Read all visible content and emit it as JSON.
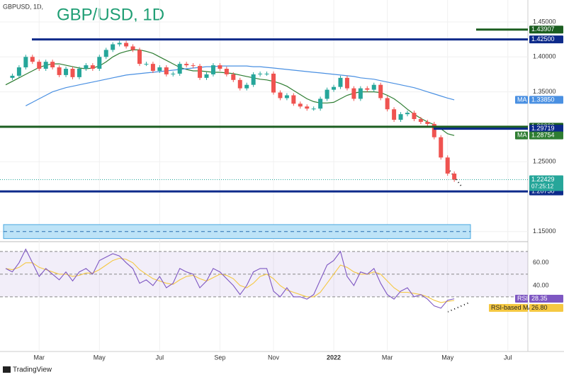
{
  "chart_data": [
    {
      "type": "candle-close",
      "title": "GBP/USD, 1D",
      "subtitle": "GBPUSD, 1D,",
      "footer": "TradingView",
      "countdown": "07:25:12",
      "categories": [
        null,
        null,
        null,
        null,
        null,
        "Mar",
        null,
        null,
        null,
        null,
        null,
        null,
        null,
        null,
        "May",
        null,
        null,
        null,
        null,
        null,
        null,
        null,
        null,
        "Jul",
        null,
        null,
        null,
        null,
        null,
        null,
        null,
        null,
        "Sep",
        null,
        null,
        null,
        null,
        null,
        null,
        null,
        "Nov",
        null,
        null,
        null,
        null,
        null,
        null,
        null,
        null,
        "2022",
        null,
        null,
        null,
        null,
        null,
        null,
        null,
        "Mar",
        null,
        null,
        null,
        null,
        null,
        null,
        null,
        null,
        "May",
        null,
        null,
        null,
        null,
        null,
        null,
        null,
        null,
        "Jul",
        null,
        null
      ],
      "ylim": [
        1.1366,
        1.4814
      ],
      "yticks": [
        {
          "value": 1.45,
          "label": "1.45000"
        },
        {
          "value": 1.4,
          "label": "1.40000"
        },
        {
          "value": 1.35,
          "label": "1.35000"
        },
        {
          "value": 1.3,
          "label": "1.30000"
        },
        {
          "value": 1.25,
          "label": "1.25000"
        },
        {
          "value": 1.15,
          "label": "1.15000"
        }
      ],
      "up_color": "#26a69a",
      "down_color": "#ef5350",
      "series": [
        {
          "color": "#26a69a",
          "values": [
            1.37,
            1.373,
            1.385,
            1.4,
            1.393,
            1.383,
            1.393,
            1.385,
            1.374,
            1.383,
            1.371,
            1.383,
            1.388,
            1.383,
            1.4,
            1.41,
            1.418,
            1.42,
            1.415,
            1.41,
            1.39,
            1.39,
            1.38,
            1.385,
            1.375,
            1.376,
            1.39,
            1.388,
            1.387,
            1.37,
            1.375,
            1.388,
            1.383,
            1.375,
            1.367,
            1.355,
            1.36,
            1.375,
            1.376,
            1.376,
            1.349,
            1.341,
            1.345,
            1.333,
            1.329,
            1.326,
            1.326,
            1.34,
            1.353,
            1.357,
            1.37,
            1.355,
            1.34,
            1.355,
            1.353,
            1.36,
            1.341,
            1.325,
            1.31,
            1.318,
            1.32,
            1.311,
            1.307,
            1.304,
            1.285,
            1.256,
            1.233,
            1.22429,
            null,
            null,
            null,
            null,
            null,
            null,
            null,
            null,
            null,
            null
          ]
        },
        {
          "label": "MA",
          "color": "#2e7d32",
          "values": [
            1.36,
            1.365,
            1.37,
            1.375,
            1.38,
            1.385,
            1.388,
            1.39,
            1.39,
            1.388,
            1.386,
            1.384,
            1.383,
            1.384,
            1.387,
            1.393,
            1.4,
            1.405,
            1.408,
            1.41,
            1.41,
            1.408,
            1.405,
            1.4,
            1.395,
            1.39,
            1.385,
            1.382,
            1.38,
            1.38,
            1.379,
            1.378,
            1.378,
            1.377,
            1.376,
            1.374,
            1.372,
            1.37,
            1.368,
            1.367,
            1.365,
            1.362,
            1.358,
            1.352,
            1.346,
            1.34,
            1.336,
            1.334,
            1.334,
            1.335,
            1.34,
            1.345,
            1.348,
            1.35,
            1.35,
            1.35,
            1.349,
            1.345,
            1.34,
            1.333,
            1.325,
            1.318,
            1.312,
            1.307,
            1.303,
            1.297,
            1.29,
            1.28754,
            null,
            null,
            null,
            null,
            null,
            null,
            null,
            null,
            null,
            null
          ]
        },
        {
          "label": "MA",
          "color": "#4a90e2",
          "last_label": "1.33850",
          "values": [
            null,
            null,
            null,
            1.33,
            1.335,
            1.34,
            1.345,
            1.35,
            1.353,
            1.356,
            1.358,
            1.36,
            1.362,
            1.364,
            1.366,
            1.368,
            1.37,
            1.372,
            1.374,
            1.375,
            1.376,
            1.377,
            1.378,
            1.379,
            1.38,
            1.381,
            1.382,
            1.383,
            1.384,
            1.385,
            1.386,
            1.386,
            1.387,
            1.387,
            1.387,
            1.387,
            1.387,
            1.386,
            1.386,
            1.385,
            1.384,
            1.383,
            1.382,
            1.381,
            1.38,
            1.379,
            1.378,
            1.377,
            1.376,
            1.375,
            1.374,
            1.373,
            1.372,
            1.37,
            1.369,
            1.368,
            1.366,
            1.364,
            1.362,
            1.36,
            1.358,
            1.356,
            1.353,
            1.35,
            1.347,
            1.344,
            1.341,
            1.3385,
            null,
            null,
            null,
            null,
            null,
            null,
            null,
            null,
            null,
            null
          ]
        }
      ],
      "levels": [
        {
          "value": 1.43907,
          "color": "#1b5e20"
        },
        {
          "value": 1.425,
          "label": "1.42500",
          "color": "#0d2a8a"
        },
        {
          "value": 1.3,
          "label": "1.30000",
          "color": "#1b5e20"
        },
        {
          "value": 1.29719,
          "color": "#0d2a8a"
        },
        {
          "value": 1.2075,
          "label": "1.20750",
          "color": "#0d2a8a"
        }
      ],
      "zone": [
        1.14,
        1.16
      ]
    },
    {
      "type": "rsi",
      "ylim": [
        -10,
        78
      ],
      "yticks": [
        {
          "value": 60,
          "label": "60.00"
        },
        {
          "value": 40,
          "label": "40.00"
        }
      ],
      "bands": [
        70,
        50,
        30
      ],
      "series": [
        {
          "label": "RSI",
          "color": "#7e57c2",
          "values": [
            55,
            52,
            60,
            72,
            60,
            48,
            55,
            50,
            45,
            52,
            44,
            52,
            55,
            50,
            62,
            65,
            68,
            66,
            60,
            55,
            42,
            45,
            40,
            48,
            38,
            42,
            55,
            52,
            50,
            38,
            44,
            55,
            52,
            46,
            40,
            32,
            40,
            52,
            55,
            55,
            35,
            30,
            38,
            30,
            30,
            28,
            32,
            45,
            58,
            62,
            70,
            48,
            40,
            52,
            50,
            55,
            42,
            32,
            28,
            35,
            38,
            30,
            32,
            28,
            22,
            20,
            27,
            28.35,
            null,
            null,
            null,
            null,
            null,
            null,
            null,
            null,
            null,
            null
          ]
        },
        {
          "label": "RSI-based MA",
          "color": "#f5c842",
          "last_label": "26.80",
          "values": [
            55,
            54,
            56,
            60,
            60,
            56,
            54,
            52,
            50,
            50,
            48,
            49,
            51,
            51,
            54,
            58,
            62,
            64,
            63,
            60,
            54,
            50,
            46,
            44,
            42,
            41,
            45,
            48,
            49,
            46,
            44,
            47,
            50,
            49,
            46,
            40,
            38,
            42,
            48,
            50,
            46,
            40,
            36,
            34,
            32,
            30,
            30,
            34,
            42,
            50,
            58,
            56,
            52,
            50,
            50,
            52,
            50,
            44,
            38,
            34,
            34,
            33,
            32,
            30,
            27,
            25,
            26,
            26.8,
            null,
            null,
            null,
            null,
            null,
            null,
            null,
            null,
            null,
            null
          ]
        }
      ]
    }
  ]
}
